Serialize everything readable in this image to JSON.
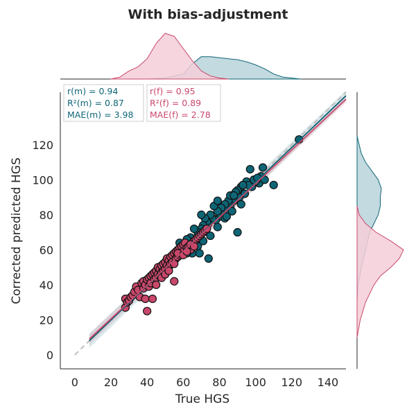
{
  "chart_data": {
    "type": "scatter",
    "title": "With bias-adjustment",
    "xlabel": "True HGS",
    "ylabel": "Corrected predicted HGS",
    "xlim": [
      -8,
      150
    ],
    "ylim": [
      -8,
      150
    ],
    "xticks": [
      0,
      20,
      40,
      60,
      80,
      100,
      120,
      140
    ],
    "yticks": [
      0,
      20,
      40,
      60,
      80,
      100,
      120
    ],
    "grid": false,
    "identity_line": true,
    "colors": {
      "male": "#0e6576",
      "female": "#c9476a",
      "identity": "#bdbdbd",
      "edge": "#111111"
    },
    "series": [
      {
        "key": "male",
        "color": "#0e6576",
        "points": [
          [
            124,
            123
          ],
          [
            110,
            97
          ],
          [
            104,
            107
          ],
          [
            103,
            102
          ],
          [
            102,
            98
          ],
          [
            100,
            99
          ],
          [
            98,
            96
          ],
          [
            97,
            106
          ],
          [
            95,
            99
          ],
          [
            94,
            92
          ],
          [
            92,
            96
          ],
          [
            91,
            90
          ],
          [
            90,
            70
          ],
          [
            90,
            94
          ],
          [
            89,
            93
          ],
          [
            88,
            88
          ],
          [
            87,
            89
          ],
          [
            86,
            85
          ],
          [
            85,
            88
          ],
          [
            84,
            83
          ],
          [
            83,
            86
          ],
          [
            82,
            80
          ],
          [
            81,
            84
          ],
          [
            80,
            79
          ],
          [
            79,
            82
          ],
          [
            78,
            77
          ],
          [
            77,
            85
          ],
          [
            76,
            78
          ],
          [
            75,
            80
          ],
          [
            74,
            75
          ],
          [
            74,
            55
          ],
          [
            73,
            76
          ],
          [
            72,
            71
          ],
          [
            72,
            78
          ],
          [
            71,
            74
          ],
          [
            70,
            72
          ],
          [
            70,
            80
          ],
          [
            69,
            68
          ],
          [
            68,
            70
          ],
          [
            68,
            62
          ],
          [
            67,
            66
          ],
          [
            66,
            72
          ],
          [
            65,
            64
          ],
          [
            65,
            58
          ],
          [
            64,
            67
          ],
          [
            63,
            62
          ],
          [
            62,
            66
          ],
          [
            62,
            58
          ],
          [
            60,
            63
          ],
          [
            59,
            60
          ],
          [
            58,
            64
          ],
          [
            57,
            56
          ],
          [
            56,
            58
          ],
          [
            55,
            54
          ],
          [
            96,
            97
          ],
          [
            99,
            100
          ],
          [
            93,
            97
          ],
          [
            87,
            82
          ],
          [
            79,
            73
          ],
          [
            75,
            68
          ],
          [
            71,
            65
          ],
          [
            69,
            58
          ],
          [
            79,
            88
          ],
          [
            83,
            78
          ],
          [
            86,
            91
          ],
          [
            101,
            101
          ],
          [
            105,
            100
          ],
          [
            92,
            86
          ],
          [
            88,
            91
          ],
          [
            84,
            79
          ]
        ]
      },
      {
        "key": "female",
        "color": "#c9476a",
        "points": [
          [
            28,
            32
          ],
          [
            28,
            27
          ],
          [
            29,
            30
          ],
          [
            30,
            31
          ],
          [
            31,
            33
          ],
          [
            32,
            34
          ],
          [
            33,
            36
          ],
          [
            34,
            39
          ],
          [
            35,
            37
          ],
          [
            36,
            33
          ],
          [
            37,
            41
          ],
          [
            38,
            38
          ],
          [
            38,
            42
          ],
          [
            39,
            40
          ],
          [
            39,
            32
          ],
          [
            40,
            43
          ],
          [
            40,
            25
          ],
          [
            41,
            44
          ],
          [
            41,
            39
          ],
          [
            42,
            45
          ],
          [
            42,
            41
          ],
          [
            43,
            46
          ],
          [
            43,
            32
          ],
          [
            44,
            47
          ],
          [
            44,
            43
          ],
          [
            45,
            48
          ],
          [
            45,
            44
          ],
          [
            46,
            50
          ],
          [
            46,
            46
          ],
          [
            47,
            49
          ],
          [
            47,
            45
          ],
          [
            48,
            51
          ],
          [
            48,
            47
          ],
          [
            49,
            52
          ],
          [
            49,
            48
          ],
          [
            50,
            53
          ],
          [
            50,
            49
          ],
          [
            51,
            55
          ],
          [
            51,
            51
          ],
          [
            52,
            54
          ],
          [
            52,
            50
          ],
          [
            53,
            56
          ],
          [
            53,
            52
          ],
          [
            54,
            57
          ],
          [
            54,
            53
          ],
          [
            55,
            58
          ],
          [
            55,
            42
          ],
          [
            56,
            59
          ],
          [
            56,
            55
          ],
          [
            57,
            60
          ],
          [
            57,
            56
          ],
          [
            58,
            61
          ],
          [
            58,
            57
          ],
          [
            59,
            62
          ],
          [
            59,
            58
          ],
          [
            60,
            63
          ],
          [
            60,
            59
          ],
          [
            61,
            64
          ],
          [
            62,
            61
          ],
          [
            63,
            62
          ],
          [
            64,
            60
          ],
          [
            65,
            63
          ],
          [
            66,
            65
          ],
          [
            67,
            66
          ],
          [
            68,
            67
          ],
          [
            69,
            68
          ],
          [
            70,
            69
          ],
          [
            71,
            70
          ],
          [
            72,
            71
          ],
          [
            73,
            72
          ],
          [
            45,
            40
          ],
          [
            48,
            44
          ],
          [
            50,
            46
          ],
          [
            52,
            48
          ],
          [
            55,
            52
          ],
          [
            57,
            58
          ],
          [
            60,
            57
          ],
          [
            62,
            59
          ],
          [
            64,
            63
          ],
          [
            66,
            62
          ]
        ]
      }
    ],
    "fits": [
      {
        "key": "male",
        "color": "#0e6576",
        "x": [
          8,
          150
        ],
        "y": [
          8,
          148
        ],
        "ci": [
          4,
          3
        ]
      },
      {
        "key": "female",
        "color": "#c9476a",
        "x": [
          8,
          150
        ],
        "y": [
          9,
          146
        ],
        "ci": [
          3,
          2
        ]
      }
    ],
    "marginal_x": [
      {
        "key": "male",
        "color": "#0e6576",
        "fill": "#b9d3da",
        "mean": 79,
        "sd": 15,
        "points": [
          [
            40,
            0
          ],
          [
            50,
            0.01
          ],
          [
            60,
            0.05
          ],
          [
            65,
            0.15
          ],
          [
            70,
            0.22
          ],
          [
            75,
            0.22
          ],
          [
            80,
            0.21
          ],
          [
            85,
            0.2
          ],
          [
            90,
            0.19
          ],
          [
            95,
            0.17
          ],
          [
            100,
            0.14
          ],
          [
            105,
            0.1
          ],
          [
            110,
            0.05
          ],
          [
            115,
            0.02
          ],
          [
            125,
            0
          ]
        ]
      },
      {
        "key": "female",
        "color": "#c9476a",
        "fill": "#f4ced8",
        "mean": 52,
        "sd": 10,
        "points": [
          [
            20,
            0
          ],
          [
            25,
            0.02
          ],
          [
            30,
            0.08
          ],
          [
            35,
            0.12
          ],
          [
            40,
            0.2
          ],
          [
            45,
            0.35
          ],
          [
            50,
            0.45
          ],
          [
            55,
            0.42
          ],
          [
            60,
            0.3
          ],
          [
            65,
            0.18
          ],
          [
            70,
            0.08
          ],
          [
            75,
            0.03
          ],
          [
            80,
            0.01
          ],
          [
            85,
            0
          ]
        ]
      }
    ],
    "marginal_y": [
      {
        "key": "male",
        "color": "#0e6576",
        "fill": "#b9d3da",
        "points": [
          [
            30,
            0
          ],
          [
            40,
            0.01
          ],
          [
            50,
            0.04
          ],
          [
            60,
            0.08
          ],
          [
            70,
            0.12
          ],
          [
            75,
            0.16
          ],
          [
            80,
            0.2
          ],
          [
            85,
            0.22
          ],
          [
            90,
            0.22
          ],
          [
            95,
            0.23
          ],
          [
            100,
            0.2
          ],
          [
            105,
            0.14
          ],
          [
            110,
            0.08
          ],
          [
            115,
            0.04
          ],
          [
            125,
            0
          ]
        ]
      },
      {
        "key": "female",
        "color": "#c9476a",
        "fill": "#f4ced8",
        "points": [
          [
            10,
            0
          ],
          [
            20,
            0.03
          ],
          [
            30,
            0.08
          ],
          [
            40,
            0.16
          ],
          [
            45,
            0.22
          ],
          [
            50,
            0.32
          ],
          [
            55,
            0.4
          ],
          [
            60,
            0.44
          ],
          [
            65,
            0.32
          ],
          [
            70,
            0.18
          ],
          [
            75,
            0.08
          ],
          [
            80,
            0.02
          ],
          [
            85,
            0
          ]
        ]
      }
    ],
    "annotations": {
      "male": {
        "color": "#0e6576",
        "lines": [
          "r(m) = 0.94",
          "R²(m) = 0.87",
          "MAE(m) = 3.98"
        ]
      },
      "female": {
        "color": "#c9476a",
        "lines": [
          "r(f) = 0.95",
          "R²(f) = 0.89",
          "MAE(f) = 2.78"
        ]
      }
    }
  }
}
